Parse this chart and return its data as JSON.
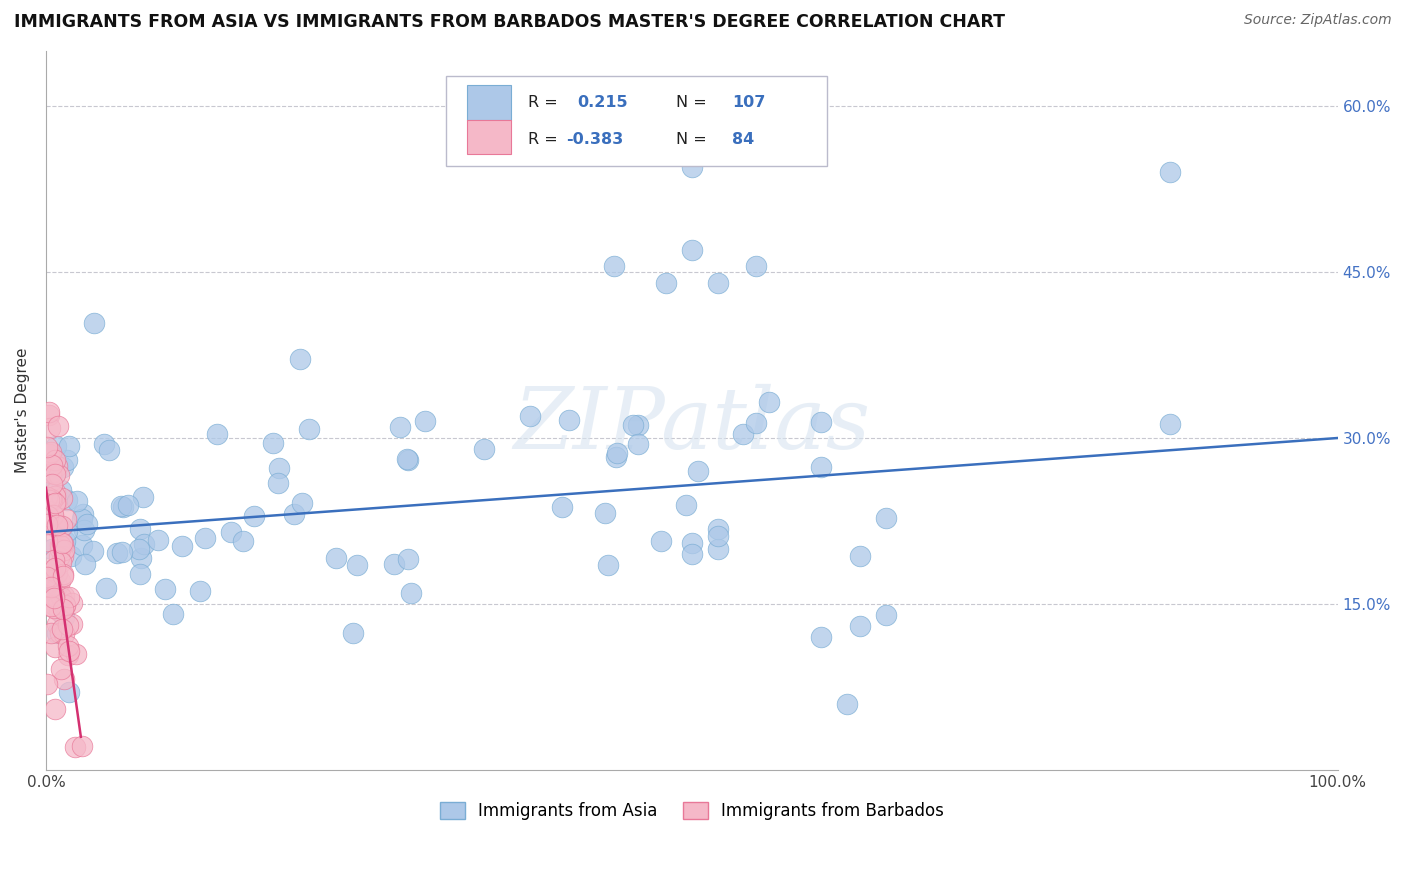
{
  "title": "IMMIGRANTS FROM ASIA VS IMMIGRANTS FROM BARBADOS MASTER'S DEGREE CORRELATION CHART",
  "source": "Source: ZipAtlas.com",
  "ylabel": "Master's Degree",
  "xlim": [
    0,
    1.0
  ],
  "ylim": [
    0,
    0.65
  ],
  "xticks": [
    0.0,
    0.1,
    0.2,
    0.3,
    0.4,
    0.5,
    0.6,
    0.7,
    0.8,
    0.9,
    1.0
  ],
  "xticklabels": [
    "0.0%",
    "",
    "",
    "",
    "",
    "",
    "",
    "",
    "",
    "",
    "100.0%"
  ],
  "yticks": [
    0.0,
    0.15,
    0.3,
    0.45,
    0.6
  ],
  "right_yticklabels": [
    "",
    "15.0%",
    "30.0%",
    "45.0%",
    "60.0%"
  ],
  "R_asia": 0.215,
  "N_asia": 107,
  "R_barbados": -0.383,
  "N_barbados": 84,
  "legend_labels": [
    "Immigrants from Asia",
    "Immigrants from Barbados"
  ],
  "asia_color": "#adc8e8",
  "asia_edge_color": "#7aadd4",
  "barbados_color": "#f5b8c8",
  "barbados_edge_color": "#e87898",
  "trend_asia_color": "#3a6fbd",
  "trend_barbados_color": "#d43070",
  "watermark_text": "ZIPatlas",
  "grid_color": "#c8c8d0",
  "legend_box_color": "#bbbbcc",
  "asia_trend_x0": 0.0,
  "asia_trend_y0": 0.215,
  "asia_trend_x1": 1.0,
  "asia_trend_y1": 0.3,
  "barb_trend_x0": 0.0,
  "barb_trend_y0": 0.255,
  "barb_trend_x1": 0.027,
  "barb_trend_y1": 0.03
}
